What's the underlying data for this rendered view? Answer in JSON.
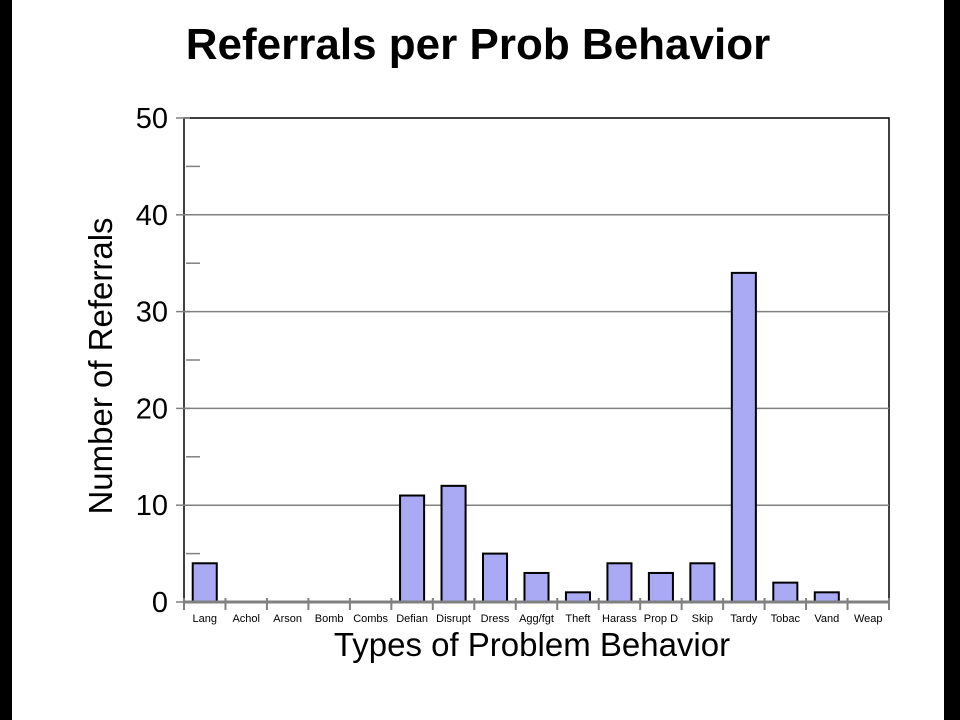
{
  "chart_data": {
    "type": "bar",
    "title": "Referrals per Prob Behavior",
    "xlabel": "Types of Problem Behavior",
    "ylabel": "Number of Referrals",
    "categories": [
      "Lang",
      "Achol",
      "Arson",
      "Bomb",
      "Combs",
      "Defian",
      "Disrupt",
      "Dress",
      "Agg/fgt",
      "Theft",
      "Harass",
      "Prop D",
      "Skip",
      "Tardy",
      "Tobac",
      "Vand",
      "Weap"
    ],
    "values": [
      4,
      0,
      0,
      0,
      0,
      11,
      12,
      5,
      3,
      1,
      4,
      3,
      4,
      34,
      2,
      1,
      0
    ],
    "ylim": [
      0,
      50
    ],
    "yticks": [
      "0",
      "10",
      "20",
      "30",
      "40",
      "50"
    ],
    "grid": true,
    "bar_color": "#a9aaf3",
    "bar_edge_color": "#000000",
    "grid_color": "#808080"
  }
}
